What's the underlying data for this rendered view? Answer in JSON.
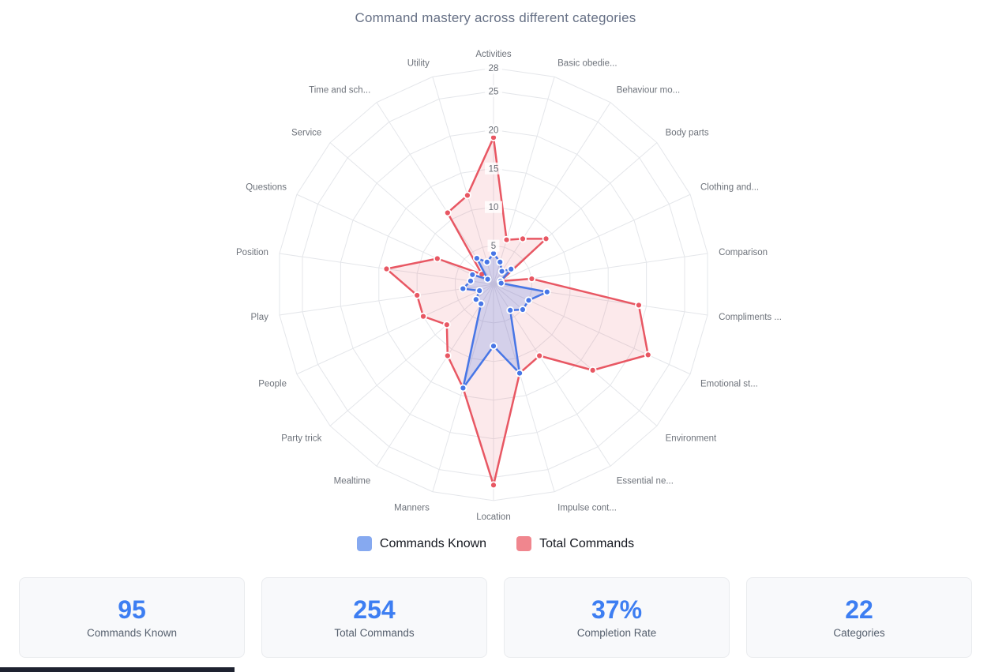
{
  "title": "Command mastery across different categories",
  "chart_data": {
    "type": "radar",
    "categories": [
      "Activities",
      "Basic obedie...",
      "Behaviour mo...",
      "Body parts",
      "Clothing and...",
      "Comparison",
      "Compliments ...",
      "Emotional st...",
      "Environment",
      "Essential ne...",
      "Impulse cont...",
      "Location",
      "Manners",
      "Mealtime",
      "Party trick",
      "People",
      "Play",
      "Position",
      "Questions",
      "Service",
      "Time and sch...",
      "Utility"
    ],
    "series": [
      {
        "name": "Commands Known",
        "values": [
          4,
          3,
          2,
          3,
          1,
          1,
          7,
          5,
          5,
          4,
          12,
          8,
          14,
          3,
          3,
          2,
          4,
          3,
          3,
          1,
          4,
          3
        ],
        "line_color": "#4776e6",
        "fill_color": "rgba(71,118,230,0.22)",
        "legend_swatch": "#86a9f0"
      },
      {
        "name": "Total Commands",
        "values": [
          19,
          6,
          7,
          9,
          1,
          5,
          19,
          22,
          17,
          11,
          12,
          26,
          14,
          11,
          8,
          10,
          10,
          14,
          8,
          2,
          11,
          12
        ],
        "line_color": "#e85763",
        "fill_color": "rgba(232,87,99,0.13)",
        "legend_swatch": "#f0868e"
      }
    ],
    "radial_ticks": [
      5,
      10,
      15,
      20,
      25,
      28
    ],
    "rmax": 28,
    "grid": true,
    "legend_position": "bottom",
    "tick_label_color": "#666b73",
    "category_label_color": "#6e737b",
    "grid_color": "#e4e6ea"
  },
  "stats": [
    {
      "value": "95",
      "label": "Commands Known"
    },
    {
      "value": "254",
      "label": "Total Commands"
    },
    {
      "value": "37%",
      "label": "Completion Rate"
    },
    {
      "value": "22",
      "label": "Categories"
    }
  ]
}
